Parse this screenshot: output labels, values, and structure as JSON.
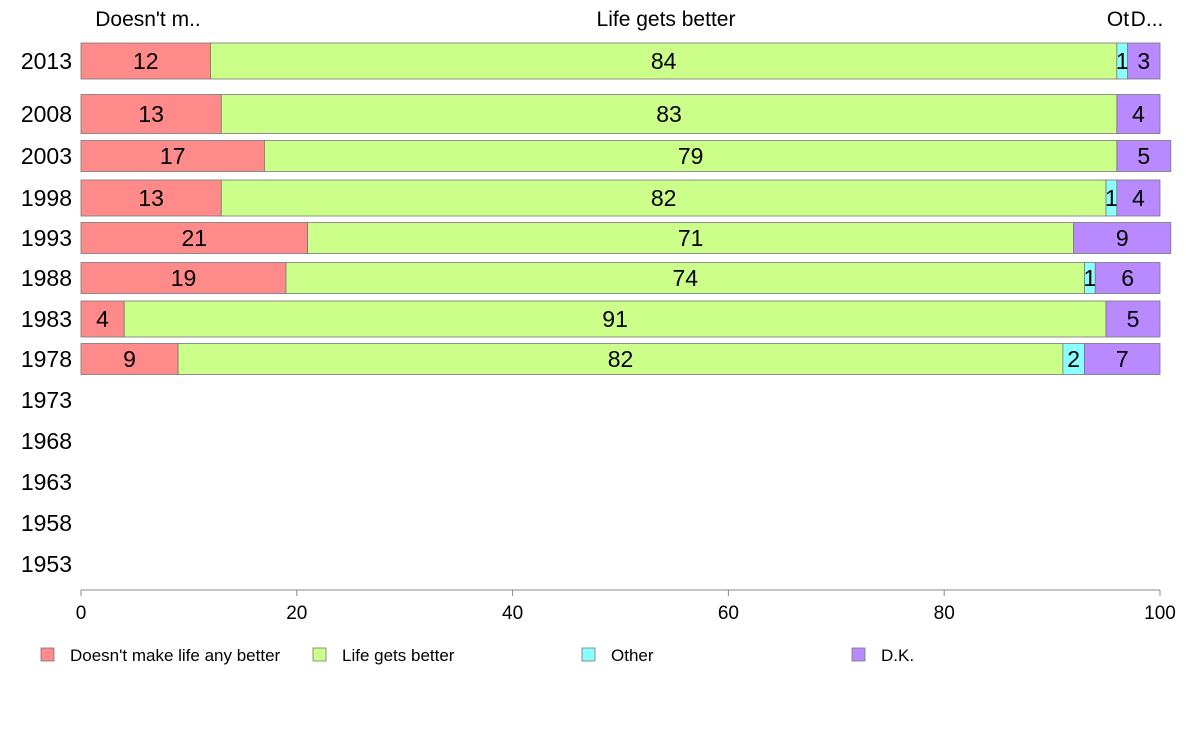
{
  "chart_data": {
    "type": "bar",
    "orientation": "horizontal",
    "stacked": true,
    "title": "",
    "xlabel": "",
    "ylabel": "",
    "xlim": [
      0,
      100
    ],
    "x_ticks": [
      "0",
      "20",
      "40",
      "60",
      "80",
      "100"
    ],
    "categories": [
      "2013",
      "2008",
      "2003",
      "1998",
      "1993",
      "1988",
      "1983",
      "1978",
      "1973",
      "1968",
      "1963",
      "1958",
      "1953"
    ],
    "series": [
      {
        "name": "Doesn't make life any better",
        "color": "#ff8a8a",
        "values": [
          12,
          13,
          17,
          13,
          21,
          19,
          4,
          9,
          null,
          null,
          null,
          null,
          null
        ]
      },
      {
        "name": "Life gets better",
        "color": "#ccff8a",
        "values": [
          84,
          83,
          79,
          82,
          71,
          74,
          91,
          82,
          null,
          null,
          null,
          null,
          null
        ]
      },
      {
        "name": "Other",
        "color": "#8affff",
        "values": [
          1,
          0,
          0,
          1,
          0,
          1,
          0,
          2,
          null,
          null,
          null,
          null,
          null
        ]
      },
      {
        "name": "D.K.",
        "color": "#b98aff",
        "values": [
          3,
          4,
          5,
          4,
          9,
          6,
          5,
          7,
          null,
          null,
          null,
          null,
          null
        ]
      }
    ],
    "top_labels": [
      "Doesn't m..",
      "Life gets better",
      "Ot",
      "D..."
    ],
    "legend_position": "bottom",
    "grid": false
  }
}
